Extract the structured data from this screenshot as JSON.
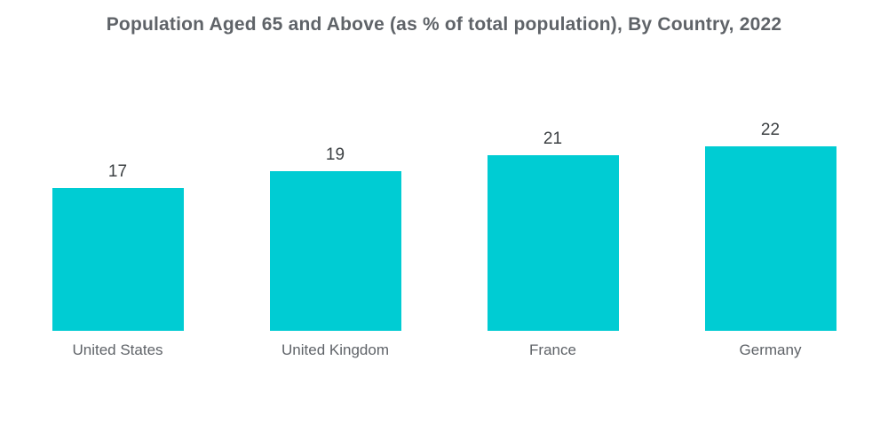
{
  "chart_data": {
    "type": "bar",
    "title": "Population Aged 65 and Above (as % of total population), By Country, 2022",
    "categories": [
      "United States",
      "United Kingdom",
      "France",
      "Germany"
    ],
    "values": [
      17,
      19,
      21,
      22
    ],
    "xlabel": "",
    "ylabel": "",
    "ylim": [
      0,
      22
    ],
    "grid": false,
    "legend": false,
    "axes_visible": false,
    "value_labels_position": "above-bars",
    "bar_color": "#00CCD3",
    "title_color": "#5f6368",
    "value_label_color": "#3c4043",
    "category_label_color": "#5f6368",
    "background_color": "#ffffff"
  }
}
